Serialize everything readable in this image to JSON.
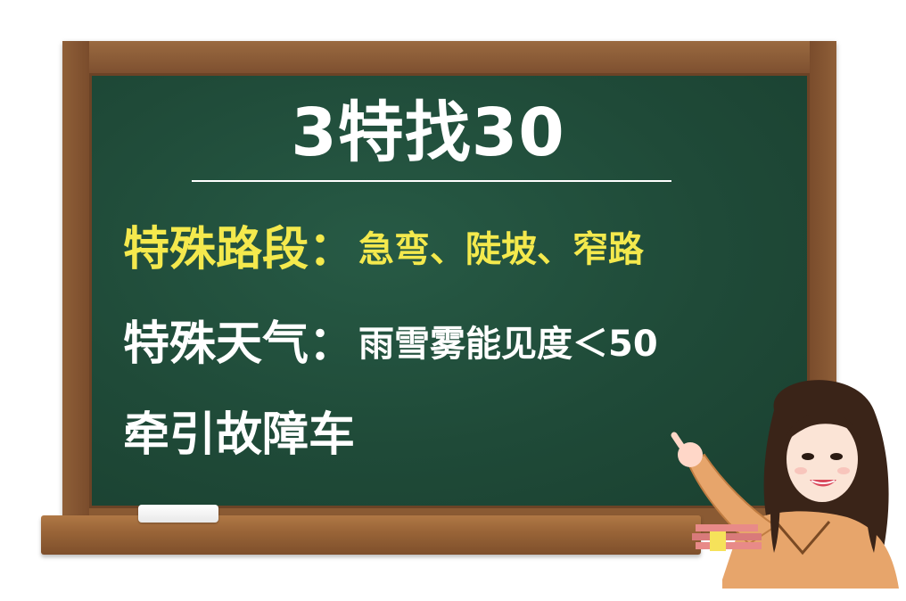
{
  "board": {
    "title": "3特找30",
    "lines": [
      {
        "head": "特殊路段：",
        "detail": "急弯、陡坡、窄路"
      },
      {
        "head": "特殊天气：",
        "detail": "雨雪雾能见度＜50"
      },
      {
        "head": "牵引故障车",
        "detail": ""
      }
    ]
  },
  "colors": {
    "board": "#1f4a38",
    "frame": "#8a5a33",
    "highlight": "#f4e94d",
    "text": "#ffffff"
  },
  "icons": {
    "presenter": "presenter-illustration",
    "chalk": "chalk-icon"
  }
}
